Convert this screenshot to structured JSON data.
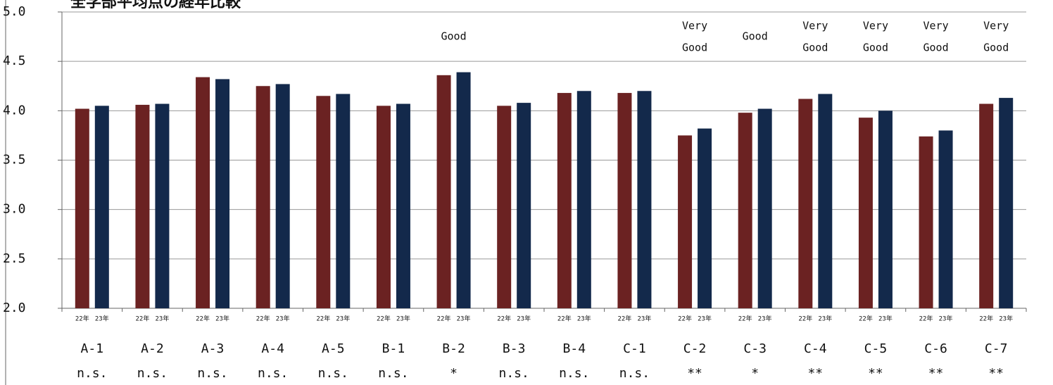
{
  "chart_data": {
    "type": "bar",
    "title": "全学部平均点の経年比較",
    "categories": [
      "A-1",
      "A-2",
      "A-3",
      "A-4",
      "A-5",
      "B-1",
      "B-2",
      "B-3",
      "B-4",
      "C-1",
      "C-2",
      "C-3",
      "C-4",
      "C-5",
      "C-6",
      "C-7"
    ],
    "series": [
      {
        "name": "22年",
        "color": "#6b2222",
        "values": [
          4.02,
          4.06,
          4.34,
          4.25,
          4.15,
          4.05,
          4.36,
          4.05,
          4.18,
          4.18,
          3.75,
          3.98,
          4.12,
          3.93,
          3.74,
          4.07
        ]
      },
      {
        "name": "23年",
        "color": "#13294b",
        "values": [
          4.05,
          4.07,
          4.32,
          4.27,
          4.17,
          4.07,
          4.39,
          4.08,
          4.2,
          4.2,
          3.82,
          4.02,
          4.17,
          4.0,
          3.8,
          4.13
        ]
      }
    ],
    "significance": [
      "n.s.",
      "n.s.",
      "n.s.",
      "n.s.",
      "n.s.",
      "n.s.",
      "*",
      "n.s.",
      "n.s.",
      "n.s.",
      "**",
      "*",
      "**",
      "**",
      "**",
      "**"
    ],
    "annotations": [
      null,
      null,
      null,
      null,
      null,
      null,
      [
        "Good"
      ],
      null,
      null,
      null,
      [
        "Very",
        "Good"
      ],
      [
        "Good"
      ],
      [
        "Very",
        "Good"
      ],
      [
        "Very",
        "Good"
      ],
      [
        "Very",
        "Good"
      ],
      [
        "Very",
        "Good"
      ]
    ],
    "ylim": [
      2.0,
      5.0
    ],
    "yticks": [
      {
        "value": 2.0,
        "label": "2.0"
      },
      2.5,
      {
        "value": 3.0,
        "label": "3.0"
      },
      3.5,
      {
        "value": 4.0,
        "label": "4.0"
      },
      4.5,
      {
        "value": 5.0,
        "label": "5.0"
      }
    ],
    "grid": true
  }
}
